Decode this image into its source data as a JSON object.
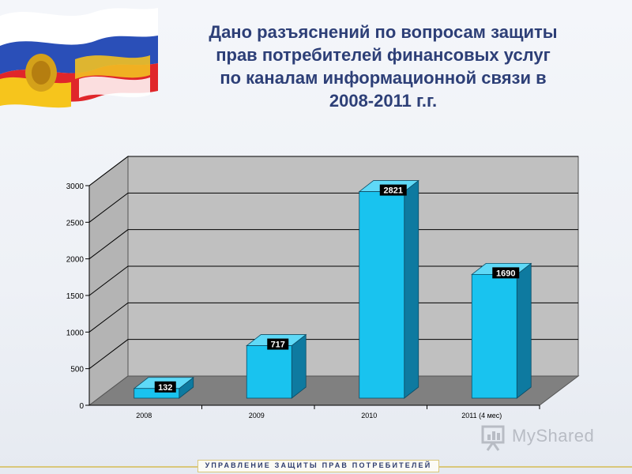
{
  "title_lines": [
    "Дано разъяснений по вопросам защиты",
    "прав потребителей финансовых услуг",
    "по каналам информационной связи в",
    "2008-2011 г.г."
  ],
  "footer": {
    "text": "УПРАВЛЕНИЕ ЗАЩИТЫ ПРАВ ПОТРЕБИТЕЛЕЙ"
  },
  "watermark": {
    "text": "MyShared",
    "icon": "presentation-board-icon"
  },
  "colors": {
    "bar_front": "#19c3ef",
    "bar_top": "#5fd9f7",
    "bar_side": "#0e7aa0",
    "title": "#2d3f77",
    "label_bg": "#000000"
  },
  "chart_data": {
    "type": "bar",
    "style": "3d-column",
    "categories": [
      "2008",
      "2009",
      "2010",
      "2011 (4 мес)"
    ],
    "values": [
      132,
      717,
      2821,
      1690
    ],
    "data_labels": [
      "132",
      "717",
      "2821",
      "1690"
    ],
    "yticks": [
      "0",
      "500",
      "1000",
      "1500",
      "2000",
      "2500",
      "3000"
    ],
    "ylim": [
      0,
      3000
    ],
    "grid": true,
    "legend": "none"
  }
}
